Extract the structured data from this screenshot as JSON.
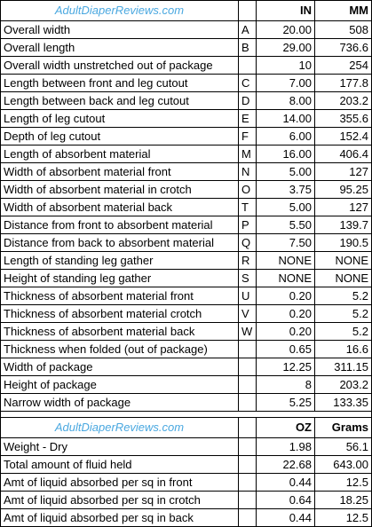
{
  "site_name": "AdultDiaperReviews.com",
  "colors": {
    "site_name": "#4aa8e0",
    "grid": "#000000"
  },
  "dimensions": {
    "unit_imperial": "IN",
    "unit_metric": "MM",
    "rows": [
      {
        "label": "Overall width",
        "code": "A",
        "imperial": "20.00",
        "metric": "508"
      },
      {
        "label": "Overall length",
        "code": "B",
        "imperial": "29.00",
        "metric": "736.6"
      },
      {
        "label": "Overall width unstretched out of package",
        "code": "",
        "imperial": "10",
        "metric": "254"
      },
      {
        "label": "Length between front and leg cutout",
        "code": "C",
        "imperial": "7.00",
        "metric": "177.8"
      },
      {
        "label": "Length between back and leg cutout",
        "code": "D",
        "imperial": "8.00",
        "metric": "203.2"
      },
      {
        "label": "Length of leg cutout",
        "code": "E",
        "imperial": "14.00",
        "metric": "355.6"
      },
      {
        "label": "Depth of leg cutout",
        "code": "F",
        "imperial": "6.00",
        "metric": "152.4"
      },
      {
        "label": "Length of absorbent material",
        "code": "M",
        "imperial": "16.00",
        "metric": "406.4"
      },
      {
        "label": "Width of absorbent material front",
        "code": "N",
        "imperial": "5.00",
        "metric": "127"
      },
      {
        "label": "Width of absorbent material in crotch",
        "code": "O",
        "imperial": "3.75",
        "metric": "95.25"
      },
      {
        "label": "Width of absorbent material back",
        "code": "T",
        "imperial": "5.00",
        "metric": "127"
      },
      {
        "label": "Distance from front to absorbent material",
        "code": "P",
        "imperial": "5.50",
        "metric": "139.7"
      },
      {
        "label": "Distance from back to absorbent material",
        "code": "Q",
        "imperial": "7.50",
        "metric": "190.5"
      },
      {
        "label": "Length of standing leg gather",
        "code": "R",
        "imperial": "NONE",
        "metric": "NONE"
      },
      {
        "label": "Height of standing leg gather",
        "code": "S",
        "imperial": "NONE",
        "metric": "NONE"
      },
      {
        "label": "Thickness of absorbent material front",
        "code": "U",
        "imperial": "0.20",
        "metric": "5.2"
      },
      {
        "label": "Thickness of absorbent material crotch",
        "code": "V",
        "imperial": "0.20",
        "metric": "5.2"
      },
      {
        "label": "Thickness of absorbent material back",
        "code": "W",
        "imperial": "0.20",
        "metric": "5.2"
      },
      {
        "label": "Thickness when folded (out of package)",
        "code": "",
        "imperial": "0.65",
        "metric": "16.6"
      },
      {
        "label": "Width of package",
        "code": "",
        "imperial": "12.25",
        "metric": "311.15"
      },
      {
        "label": "Height of package",
        "code": "",
        "imperial": "8",
        "metric": "203.2"
      },
      {
        "label": "Narrow width of package",
        "code": "",
        "imperial": "5.25",
        "metric": "133.35"
      }
    ]
  },
  "weights": {
    "unit_imperial": "OZ",
    "unit_metric": "Grams",
    "rows": [
      {
        "label": "Weight - Dry",
        "imperial": "1.98",
        "metric": "56.1"
      },
      {
        "label": "Total amount of fluid held",
        "imperial": "22.68",
        "metric": "643.00"
      },
      {
        "label": "Amt of liquid absorbed per sq in front",
        "imperial": "0.44",
        "metric": "12.5"
      },
      {
        "label": "Amt of liquid absorbed per sq in crotch",
        "imperial": "0.64",
        "metric": "18.25"
      },
      {
        "label": "Amt of liquid absorbed per sq in back",
        "imperial": "0.44",
        "metric": "12.5"
      }
    ]
  }
}
